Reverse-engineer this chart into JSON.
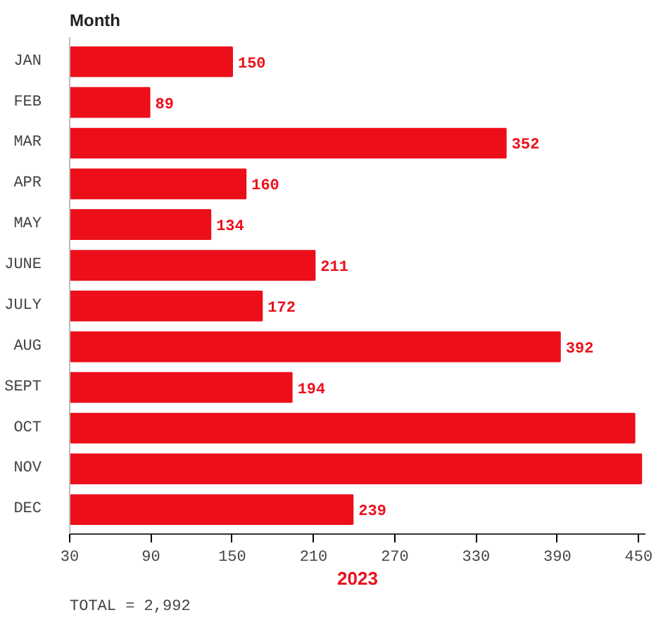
{
  "chart_data": {
    "type": "bar",
    "orientation": "horizontal",
    "ylabel": "Month",
    "xlabel": "2023",
    "categories": [
      "JAN",
      "FEB",
      "MAR",
      "APR",
      "MAY",
      "JUNE",
      "JULY",
      "AUG",
      "SEPT",
      "OCT",
      "NOV",
      "DEC"
    ],
    "values": [
      150,
      89,
      352,
      160,
      134,
      211,
      172,
      392,
      194,
      447,
      452,
      239
    ],
    "value_labels": [
      "150",
      "89",
      "352",
      "160",
      "134",
      "211",
      "172",
      "392",
      "194",
      null,
      null,
      "239"
    ],
    "color": "#ec0f1a",
    "xlim": [
      30,
      455
    ],
    "xticks": [
      30,
      90,
      150,
      210,
      270,
      330,
      390,
      450
    ],
    "grid": false,
    "annotations": [
      "TOTAL = 2,992"
    ]
  }
}
